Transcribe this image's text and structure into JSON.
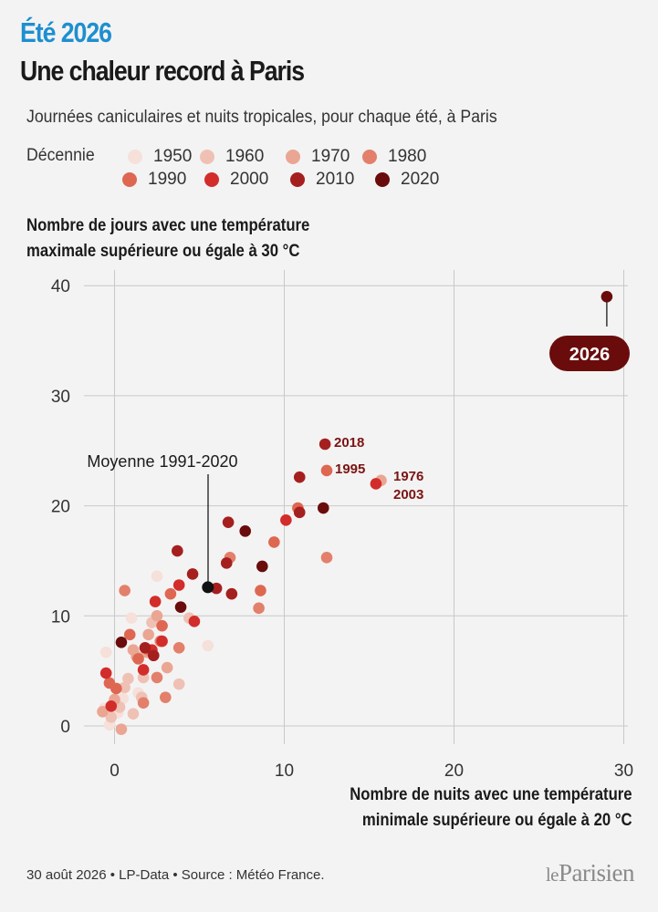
{
  "header": {
    "kicker": "Été 2026",
    "title": "Une chaleur record à Paris",
    "subtitle": "Journées caniculaires et nuits tropicales, pour chaque été, à Paris"
  },
  "legend": {
    "title": "Décennie",
    "items": [
      {
        "label": "1950",
        "color": "#f6e0da"
      },
      {
        "label": "1960",
        "color": "#efc1b5"
      },
      {
        "label": "1970",
        "color": "#eaa693"
      },
      {
        "label": "1980",
        "color": "#e2806b"
      },
      {
        "label": "1990",
        "color": "#de6752"
      },
      {
        "label": "2000",
        "color": "#d22d2b"
      },
      {
        "label": "2010",
        "color": "#a51f1f"
      },
      {
        "label": "2020",
        "color": "#6a0c0c"
      }
    ]
  },
  "axes": {
    "ylabel_line1": "Nombre de jours avec une température",
    "ylabel_line2": "maximale supérieure ou égale à 30 °C",
    "xlabel_line1": "Nombre de nuits avec une température",
    "xlabel_line2": "minimale supérieure ou égale à 20 °C"
  },
  "footer": {
    "source": "30 août 2026 • LP-Data • Source : Météo France.",
    "logo_le": "le",
    "logo_name": "Parisien"
  },
  "chart_data": {
    "type": "scatter",
    "xlabel": "Nombre de nuits avec une température minimale supérieure ou égale à 20 °C",
    "ylabel": "Nombre de jours avec une température maximale supérieure ou égale à 30 °C",
    "xlim": [
      -1,
      30
    ],
    "ylim": [
      -1,
      40
    ],
    "xticks": [
      0,
      10,
      20,
      30
    ],
    "yticks": [
      0,
      10,
      20,
      30,
      40
    ],
    "grid": true,
    "series": [
      {
        "name": "1950",
        "color": "#f6e0da",
        "points": [
          [
            -0.5,
            6.7
          ],
          [
            0.5,
            2.5
          ],
          [
            1.0,
            9.8
          ],
          [
            -0.3,
            0.1
          ],
          [
            2.5,
            13.6
          ],
          [
            5.5,
            7.3
          ],
          [
            0.2,
            1.2
          ],
          [
            -0.6,
            1.6
          ],
          [
            1.4,
            3.0
          ]
        ]
      },
      {
        "name": "1960",
        "color": "#efc1b5",
        "points": [
          [
            0.3,
            1.7
          ],
          [
            0.8,
            4.3
          ],
          [
            1.6,
            2.6
          ],
          [
            -0.2,
            0.8
          ],
          [
            1.1,
            1.1
          ],
          [
            2.2,
            9.4
          ],
          [
            3.8,
            3.8
          ],
          [
            0.6,
            3.5
          ],
          [
            4.4,
            9.8
          ],
          [
            1.7,
            4.4
          ]
        ]
      },
      {
        "name": "1970",
        "color": "#eaa693",
        "points": [
          [
            0.4,
            -0.3
          ],
          [
            -0.7,
            1.3
          ],
          [
            1.3,
            6.3
          ],
          [
            2.0,
            8.3
          ],
          [
            3.1,
            5.3
          ],
          [
            2.5,
            10.0
          ],
          [
            0.0,
            2.4
          ],
          [
            1.9,
            6.7
          ],
          [
            1.1,
            6.9
          ],
          [
            15.7,
            22.3
          ]
        ]
      },
      {
        "name": "1980",
        "color": "#e2806b",
        "points": [
          [
            0.6,
            12.3
          ],
          [
            2.0,
            6.9
          ],
          [
            3.8,
            7.1
          ],
          [
            1.7,
            2.1
          ],
          [
            2.5,
            4.4
          ],
          [
            2.7,
            7.7
          ],
          [
            3.0,
            2.6
          ],
          [
            6.8,
            15.3
          ],
          [
            8.5,
            10.7
          ],
          [
            12.5,
            15.3
          ]
        ]
      },
      {
        "name": "1990",
        "color": "#de6752",
        "points": [
          [
            -0.3,
            3.9
          ],
          [
            0.1,
            3.4
          ],
          [
            0.9,
            8.3
          ],
          [
            1.4,
            6.1
          ],
          [
            2.8,
            9.1
          ],
          [
            3.3,
            12.0
          ],
          [
            8.6,
            12.3
          ],
          [
            9.4,
            16.7
          ],
          [
            10.8,
            19.8
          ],
          [
            12.5,
            23.2
          ]
        ]
      },
      {
        "name": "2000",
        "color": "#d22d2b",
        "points": [
          [
            -0.5,
            4.8
          ],
          [
            1.7,
            5.1
          ],
          [
            2.4,
            11.3
          ],
          [
            2.8,
            7.7
          ],
          [
            3.8,
            12.8
          ],
          [
            4.7,
            9.5
          ],
          [
            2.2,
            6.9
          ],
          [
            -0.2,
            1.8
          ],
          [
            10.1,
            18.7
          ],
          [
            15.4,
            22.0
          ]
        ]
      },
      {
        "name": "2010",
        "color": "#a51f1f",
        "points": [
          [
            1.8,
            7.1
          ],
          [
            2.3,
            6.4
          ],
          [
            3.7,
            15.9
          ],
          [
            4.6,
            13.8
          ],
          [
            6.7,
            18.5
          ],
          [
            6.6,
            14.8
          ],
          [
            6.9,
            12.0
          ],
          [
            10.9,
            22.6
          ],
          [
            10.9,
            19.4
          ],
          [
            12.4,
            25.6
          ],
          [
            6.0,
            12.5
          ]
        ]
      },
      {
        "name": "2020",
        "color": "#6a0c0c",
        "points": [
          [
            0.4,
            7.6
          ],
          [
            3.9,
            10.8
          ],
          [
            7.7,
            17.7
          ],
          [
            8.7,
            14.5
          ],
          [
            12.3,
            19.8
          ],
          [
            29.0,
            39.0
          ]
        ]
      }
    ],
    "mean": {
      "label": "Moyenne 1991-2020",
      "x": 5.5,
      "y": 12.6,
      "color": "#111111"
    },
    "annotations": [
      {
        "text": "2018",
        "x": 12.4,
        "y": 25.6
      },
      {
        "text": "1995",
        "x": 12.5,
        "y": 23.2
      },
      {
        "text": "1976",
        "x": 15.7,
        "y": 22.3
      },
      {
        "text": "2003",
        "x": 15.4,
        "y": 22.0
      }
    ],
    "highlight": {
      "label": "2026",
      "x": 29.0,
      "y": 39.0,
      "color": "#6a0c0c"
    }
  }
}
